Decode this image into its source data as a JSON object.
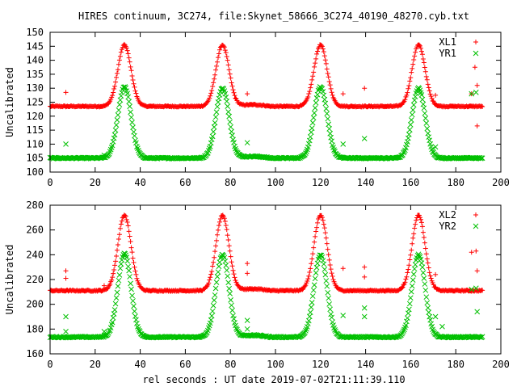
{
  "title": "HIRES continuum, 3C274, file:Skynet_58666_3C274_40190_48270.cyb.txt",
  "xlabel": "rel seconds : UT date 2019-07-02T21:11:39.110",
  "colors": {
    "red": "#ff0000",
    "green": "#00c000"
  },
  "chart_data": [
    {
      "type": "scatter",
      "ylabel": "Uncalibrated",
      "xlim": [
        0,
        200
      ],
      "ylim": [
        100,
        150
      ],
      "xticks": [
        0,
        20,
        40,
        60,
        80,
        100,
        120,
        140,
        160,
        180,
        200
      ],
      "yticks": [
        100,
        105,
        110,
        115,
        120,
        125,
        130,
        135,
        140,
        145,
        150
      ],
      "legend_position": "top-right",
      "series": [
        {
          "name": "XL1",
          "marker": "plus",
          "color": "#ff0000",
          "baseline": 123.5,
          "peaks": [
            [
              33,
              145.5
            ],
            [
              76.5,
              145.5
            ],
            [
              120,
              145.5
            ],
            [
              163.5,
              145.5
            ]
          ],
          "outliers": [
            [
              7,
              128.5
            ],
            [
              87.5,
              128
            ],
            [
              130,
              128
            ],
            [
              139.5,
              130
            ],
            [
              171,
              127.5
            ],
            [
              187,
              128
            ],
            [
              188.5,
              137.5
            ],
            [
              189.5,
              131
            ],
            [
              189.5,
              116.5
            ]
          ]
        },
        {
          "name": "YR1",
          "marker": "cross",
          "color": "#00c000",
          "baseline": 105,
          "peaks": [
            [
              33,
              130.5
            ],
            [
              76.5,
              130
            ],
            [
              120,
              130.5
            ],
            [
              163.5,
              130
            ]
          ],
          "outliers": [
            [
              7,
              110
            ],
            [
              24,
              106
            ],
            [
              87.5,
              110.5
            ],
            [
              130,
              110
            ],
            [
              139.5,
              112
            ],
            [
              171,
              109
            ],
            [
              187,
              128
            ],
            [
              189,
              128.5
            ]
          ]
        }
      ]
    },
    {
      "type": "scatter",
      "ylabel": "Uncalibrated",
      "xlim": [
        0,
        200
      ],
      "ylim": [
        160,
        280
      ],
      "xticks": [
        0,
        20,
        40,
        60,
        80,
        100,
        120,
        140,
        160,
        180,
        200
      ],
      "yticks": [
        160,
        180,
        200,
        220,
        240,
        260,
        280
      ],
      "legend_position": "top-right",
      "series": [
        {
          "name": "XL2",
          "marker": "plus",
          "color": "#ff0000",
          "baseline": 211,
          "peaks": [
            [
              33,
              272
            ],
            [
              76.5,
              272
            ],
            [
              120,
              272
            ],
            [
              163.5,
              272
            ]
          ],
          "outliers": [
            [
              7,
              227
            ],
            [
              7,
              221
            ],
            [
              24,
              215
            ],
            [
              87.5,
              233
            ],
            [
              87.5,
              225
            ],
            [
              130,
              229
            ],
            [
              139.5,
              230
            ],
            [
              139.5,
              222
            ],
            [
              171,
              224
            ],
            [
              187,
              242
            ],
            [
              189,
              243
            ],
            [
              189.5,
              227
            ]
          ]
        },
        {
          "name": "YR2",
          "marker": "cross",
          "color": "#00c000",
          "baseline": 173.5,
          "peaks": [
            [
              33,
              241
            ],
            [
              76.5,
              240
            ],
            [
              120,
              240
            ],
            [
              163.5,
              240
            ]
          ],
          "outliers": [
            [
              7,
              190
            ],
            [
              7,
              178
            ],
            [
              24,
              178
            ],
            [
              87.5,
              187
            ],
            [
              87.5,
              180
            ],
            [
              130,
              191
            ],
            [
              139.5,
              197
            ],
            [
              139.5,
              190
            ],
            [
              171,
              190
            ],
            [
              174,
              182
            ],
            [
              187,
              212
            ],
            [
              189,
              213
            ],
            [
              189.5,
              194
            ]
          ]
        }
      ]
    }
  ]
}
